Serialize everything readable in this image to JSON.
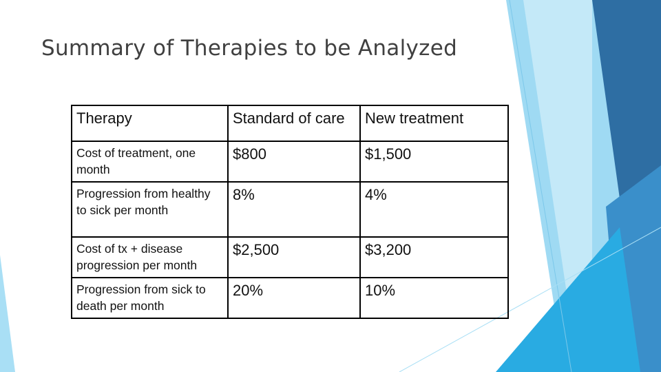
{
  "header": {
    "title": "Summary of Therapies to be Analyzed"
  },
  "table": {
    "columns": [
      "Therapy",
      "Standard of care",
      "New treatment"
    ],
    "rows": [
      [
        "Cost of treatment, one month",
        "$800",
        "$1,500"
      ],
      [
        "Progression from healthy to sick per month",
        "8%",
        "4%"
      ],
      [
        "Cost of tx + disease progression per month",
        "$2,500",
        "$3,200"
      ],
      [
        "Progression from sick to death per month",
        "20%",
        "10%"
      ]
    ]
  }
}
